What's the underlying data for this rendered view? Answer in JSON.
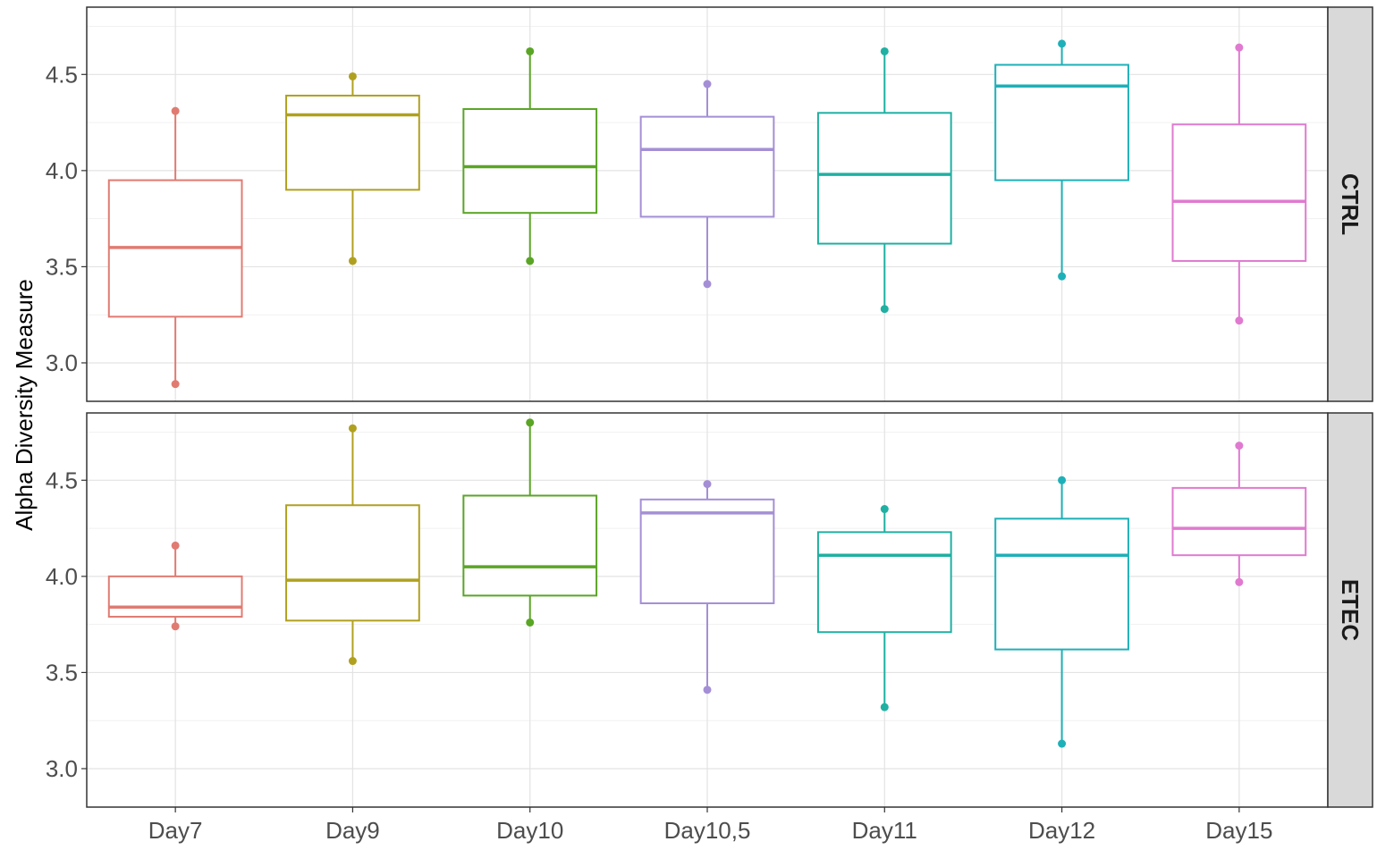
{
  "chart_data": {
    "type": "box",
    "ylabel": "Alpha Diversity Measure",
    "xlabel": "",
    "categories": [
      "Day7",
      "Day9",
      "Day10",
      "Day10,5",
      "Day11",
      "Day12",
      "Day15"
    ],
    "colors": [
      "#e07b72",
      "#b0a020",
      "#5aa526",
      "#a48fd6",
      "#1fb0a2",
      "#1eb0b8",
      "#e07ad0"
    ],
    "y_ticks": [
      "3.0",
      "3.5",
      "4.0",
      "4.5"
    ],
    "ylim": [
      2.8,
      4.85
    ],
    "grid": true,
    "facets": [
      {
        "label": "CTRL",
        "boxes": [
          {
            "category": "Day7",
            "min": 2.89,
            "q1": 3.24,
            "median": 3.6,
            "q3": 3.95,
            "max": 4.31
          },
          {
            "category": "Day9",
            "min": 3.53,
            "q1": 3.9,
            "median": 4.29,
            "q3": 4.39,
            "max": 4.49
          },
          {
            "category": "Day10",
            "min": 3.53,
            "q1": 3.78,
            "median": 4.02,
            "q3": 4.32,
            "max": 4.62
          },
          {
            "category": "Day10,5",
            "min": 3.41,
            "q1": 3.76,
            "median": 4.11,
            "q3": 4.28,
            "max": 4.45
          },
          {
            "category": "Day11",
            "min": 3.28,
            "q1": 3.62,
            "median": 3.98,
            "q3": 4.3,
            "max": 4.62
          },
          {
            "category": "Day12",
            "min": 3.45,
            "q1": 3.95,
            "median": 4.44,
            "q3": 4.55,
            "max": 4.66
          },
          {
            "category": "Day15",
            "min": 3.22,
            "q1": 3.53,
            "median": 3.84,
            "q3": 4.24,
            "max": 4.64
          }
        ]
      },
      {
        "label": "ETEC",
        "boxes": [
          {
            "category": "Day7",
            "min": 3.74,
            "q1": 3.79,
            "median": 3.84,
            "q3": 4.0,
            "max": 4.16
          },
          {
            "category": "Day9",
            "min": 3.56,
            "q1": 3.77,
            "median": 3.98,
            "q3": 4.37,
            "max": 4.77
          },
          {
            "category": "Day10",
            "min": 3.76,
            "q1": 3.9,
            "median": 4.05,
            "q3": 4.42,
            "max": 4.8
          },
          {
            "category": "Day10,5",
            "min": 3.41,
            "q1": 3.86,
            "median": 4.33,
            "q3": 4.4,
            "max": 4.48
          },
          {
            "category": "Day11",
            "min": 3.32,
            "q1": 3.71,
            "median": 4.11,
            "q3": 4.23,
            "max": 4.35
          },
          {
            "category": "Day12",
            "min": 3.13,
            "q1": 3.62,
            "median": 4.11,
            "q3": 4.3,
            "max": 4.5
          },
          {
            "category": "Day15",
            "min": 3.97,
            "q1": 4.11,
            "median": 4.25,
            "q3": 4.46,
            "max": 4.68
          }
        ]
      }
    ]
  }
}
